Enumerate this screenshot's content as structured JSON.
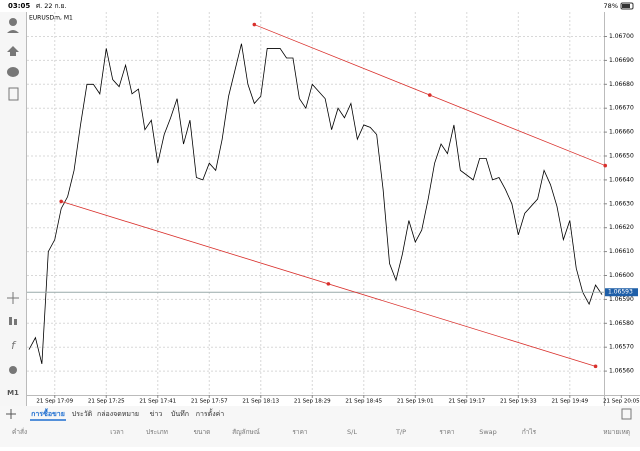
{
  "status_bar": {
    "time": "03:05",
    "date": "ศ. 22 ก.ย.",
    "battery": "78%"
  },
  "toolbar": {
    "timeframe": "M1"
  },
  "chart_data": {
    "type": "line",
    "title": "EURUSDm, M1",
    "color": "#000000",
    "x": [
      "21 Sep 17:01",
      "21 Sep 17:03",
      "21 Sep 17:05",
      "21 Sep 17:07",
      "21 Sep 17:09",
      "21 Sep 17:11",
      "21 Sep 17:13",
      "21 Sep 17:15",
      "21 Sep 17:17",
      "21 Sep 17:19",
      "21 Sep 17:21",
      "21 Sep 17:23",
      "21 Sep 17:25",
      "21 Sep 17:27",
      "21 Sep 17:29",
      "21 Sep 17:31",
      "21 Sep 17:33",
      "21 Sep 17:35",
      "21 Sep 17:37",
      "21 Sep 17:39",
      "21 Sep 17:41",
      "21 Sep 17:43",
      "21 Sep 17:45",
      "21 Sep 17:47",
      "21 Sep 17:49",
      "21 Sep 17:51",
      "21 Sep 17:53",
      "21 Sep 17:55",
      "21 Sep 17:57",
      "21 Sep 17:59",
      "21 Sep 18:01",
      "21 Sep 18:03",
      "21 Sep 18:05",
      "21 Sep 18:07",
      "21 Sep 18:09",
      "21 Sep 18:11",
      "21 Sep 18:13",
      "21 Sep 18:15",
      "21 Sep 18:17",
      "21 Sep 18:19",
      "21 Sep 18:21",
      "21 Sep 18:23",
      "21 Sep 18:25",
      "21 Sep 18:27",
      "21 Sep 18:29",
      "21 Sep 18:31",
      "21 Sep 18:33",
      "21 Sep 18:35",
      "21 Sep 18:37",
      "21 Sep 18:39",
      "21 Sep 18:41",
      "21 Sep 18:43",
      "21 Sep 18:45",
      "21 Sep 18:47",
      "21 Sep 18:49",
      "21 Sep 18:51",
      "21 Sep 18:53",
      "21 Sep 18:55",
      "21 Sep 18:57",
      "21 Sep 18:59",
      "21 Sep 19:01",
      "21 Sep 19:03",
      "21 Sep 19:05",
      "21 Sep 19:07",
      "21 Sep 19:09",
      "21 Sep 19:11",
      "21 Sep 19:13",
      "21 Sep 19:15",
      "21 Sep 19:17",
      "21 Sep 19:19",
      "21 Sep 19:21",
      "21 Sep 19:23",
      "21 Sep 19:25",
      "21 Sep 19:27",
      "21 Sep 19:29",
      "21 Sep 19:31",
      "21 Sep 19:33",
      "21 Sep 19:35",
      "21 Sep 19:37",
      "21 Sep 19:39",
      "21 Sep 19:41",
      "21 Sep 19:43",
      "21 Sep 19:45",
      "21 Sep 19:47",
      "21 Sep 19:49",
      "21 Sep 19:51",
      "21 Sep 19:53",
      "21 Sep 19:55",
      "21 Sep 19:57",
      "21 Sep 19:59"
    ],
    "values": [
      1.06569,
      1.06574,
      1.06563,
      1.0661,
      1.06615,
      1.06628,
      1.06633,
      1.06644,
      1.06663,
      1.0668,
      1.0668,
      1.06676,
      1.06695,
      1.06682,
      1.06679,
      1.06688,
      1.06676,
      1.06678,
      1.06661,
      1.06665,
      1.06647,
      1.06659,
      1.06666,
      1.06674,
      1.06655,
      1.06665,
      1.06641,
      1.0664,
      1.06647,
      1.06644,
      1.06657,
      1.06675,
      1.06686,
      1.06697,
      1.0668,
      1.06672,
      1.06675,
      1.06695,
      1.06695,
      1.06695,
      1.06691,
      1.06691,
      1.06674,
      1.0667,
      1.0668,
      1.06677,
      1.06674,
      1.06661,
      1.0667,
      1.06666,
      1.06672,
      1.06657,
      1.06663,
      1.06662,
      1.06659,
      1.06636,
      1.06605,
      1.06598,
      1.06609,
      1.06623,
      1.06614,
      1.06619,
      1.06632,
      1.06647,
      1.06655,
      1.06651,
      1.06663,
      1.06644,
      1.06642,
      1.0664,
      1.06649,
      1.06649,
      1.0664,
      1.06641,
      1.06636,
      1.0663,
      1.06617,
      1.06626,
      1.06629,
      1.06632,
      1.06644,
      1.06638,
      1.06629,
      1.06615,
      1.06623,
      1.06603,
      1.06593,
      1.06588,
      1.06596,
      1.06592
    ],
    "xlim": [
      "21 Sep 17:01",
      "21 Sep 19:59"
    ],
    "xticks": [
      "21 Sep 17:09",
      "21 Sep 17:25",
      "21 Sep 17:41",
      "21 Sep 17:57",
      "21 Sep 18:13",
      "21 Sep 18:29",
      "21 Sep 18:45",
      "21 Sep 19:01",
      "21 Sep 19:17",
      "21 Sep 19:33",
      "21 Sep 19:49",
      "21 Sep 20:05"
    ],
    "ylim": [
      1.0655,
      1.06709
    ],
    "yticks": [
      {
        "value": 1.0656,
        "label": "1.06560"
      },
      {
        "value": 1.0657,
        "label": "1.06570"
      },
      {
        "value": 1.0658,
        "label": "1.06580"
      },
      {
        "value": 1.0659,
        "label": "1.06590"
      },
      {
        "value": 1.066,
        "label": "1.06600"
      },
      {
        "value": 1.0661,
        "label": "1.06610"
      },
      {
        "value": 1.0662,
        "label": "1.06620"
      },
      {
        "value": 1.0663,
        "label": "1.06630"
      },
      {
        "value": 1.0664,
        "label": "1.06640"
      },
      {
        "value": 1.0665,
        "label": "1.06650"
      },
      {
        "value": 1.0666,
        "label": "1.06660"
      },
      {
        "value": 1.0667,
        "label": "1.06670"
      },
      {
        "value": 1.0668,
        "label": "1.06680"
      },
      {
        "value": 1.0669,
        "label": "1.06690"
      },
      {
        "value": 1.067,
        "label": "1.06700"
      }
    ],
    "grid": true,
    "last_price": {
      "value": 1.06593,
      "label": "1.06593"
    },
    "trendlines": [
      {
        "color": "#d9302c",
        "points": [
          {
            "x": "21 Sep 18:11",
            "y": 1.06705
          },
          {
            "x": "21 Sep 20:00",
            "y": 1.06646
          }
        ]
      },
      {
        "color": "#d9302c",
        "points": [
          {
            "x": "21 Sep 17:11",
            "y": 1.06631
          },
          {
            "x": "21 Sep 19:57",
            "y": 1.06562
          }
        ]
      }
    ]
  },
  "tabs": [
    "การซื้อขาย",
    "ประวัติ",
    "กล่องจดหมาย",
    "ข่าว",
    "บันทึก",
    "การตั้งค่า"
  ],
  "columns": [
    "คำสั่ง",
    "เวลา",
    "ประเภท",
    "ขนาด",
    "สัญลักษณ์",
    "ราคา",
    "S/L",
    "T/P",
    "ราคา",
    "Swap",
    "กำไร",
    "หมายเหตุ"
  ]
}
